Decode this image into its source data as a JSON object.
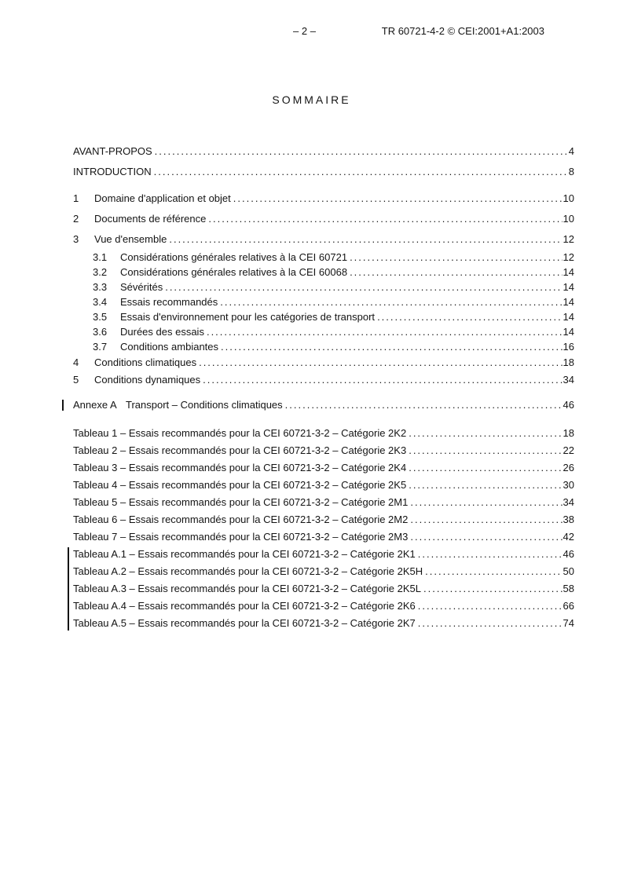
{
  "header": {
    "page_number": "– 2 –",
    "doc_ref": "TR 60721-4-2 © CEI:2001+A1:2003"
  },
  "title": "SOMMAIRE",
  "colors": {
    "text": "#141414",
    "background": "#ffffff",
    "revision_bar": "#141414"
  },
  "toc": {
    "front_matter": [
      {
        "label": "AVANT-PROPOS",
        "page": "4"
      },
      {
        "label": "INTRODUCTION",
        "page": "8"
      }
    ],
    "sections": [
      {
        "num": "1",
        "label": "Domaine d'application et objet",
        "page": "10"
      },
      {
        "num": "2",
        "label": "Documents de référence",
        "page": "10"
      },
      {
        "num": "3",
        "label": "Vue d'ensemble",
        "page": "12"
      },
      {
        "num": "3.1",
        "label": "Considérations générales relatives à la CEI 60721",
        "page": "12"
      },
      {
        "num": "3.2",
        "label": "Considérations générales relatives à la CEI 60068",
        "page": "14"
      },
      {
        "num": "3.3",
        "label": "Sévérités",
        "page": "14"
      },
      {
        "num": "3.4",
        "label": "Essais recommandés",
        "page": "14"
      },
      {
        "num": "3.5",
        "label": "Essais d'environnement pour les catégories de transport",
        "page": "14"
      },
      {
        "num": "3.6",
        "label": "Durées des essais",
        "page": "14"
      },
      {
        "num": "3.7",
        "label": "Conditions ambiantes",
        "page": "16"
      },
      {
        "num": "4",
        "label": "Conditions climatiques",
        "page": "18"
      },
      {
        "num": "5",
        "label": "Conditions dynamiques",
        "page": "34"
      }
    ],
    "annex": {
      "num": "Annexe A",
      "label": "Transport – Conditions climatiques",
      "page": "46",
      "revision_marked": true
    },
    "tables": [
      {
        "label": "Tableau 1 – Essais recommandés pour la CEI 60721-3-2 – Catégorie 2K2",
        "page": "18",
        "revision_marked": false
      },
      {
        "label": "Tableau 2 – Essais recommandés pour la CEI 60721-3-2 – Catégorie 2K3",
        "page": "22",
        "revision_marked": false
      },
      {
        "label": "Tableau 3 – Essais recommandés pour la CEI 60721-3-2 – Catégorie 2K4",
        "page": "26",
        "revision_marked": false
      },
      {
        "label": "Tableau 4 – Essais recommandés pour la CEI 60721-3-2 – Catégorie 2K5",
        "page": "30",
        "revision_marked": false
      },
      {
        "label": "Tableau 5 – Essais recommandés pour la CEI 60721-3-2 – Catégorie 2M1",
        "page": "34",
        "revision_marked": false
      },
      {
        "label": "Tableau 6 – Essais recommandés pour la CEI 60721-3-2 – Catégorie 2M2",
        "page": "38",
        "revision_marked": false
      },
      {
        "label": "Tableau 7 – Essais recommandés pour la CEI 60721-3-2 – Catégorie 2M3",
        "page": "42",
        "revision_marked": false
      },
      {
        "label": "Tableau A.1 – Essais recommandés pour la CEI 60721-3-2 – Catégorie 2K1",
        "page": "46",
        "revision_marked": true
      },
      {
        "label": "Tableau A.2 – Essais recommandés pour la CEI 60721-3-2 – Catégorie 2K5H",
        "page": "50",
        "revision_marked": true
      },
      {
        "label": "Tableau A.3 – Essais recommandés pour la CEI 60721-3-2 – Catégorie 2K5L",
        "page": "58",
        "revision_marked": true
      },
      {
        "label": "Tableau A.4 – Essais recommandés pour la CEI 60721-3-2 – Catégorie 2K6",
        "page": "66",
        "revision_marked": true
      },
      {
        "label": "Tableau A.5 – Essais recommandés pour la CEI 60721-3-2 – Catégorie 2K7",
        "page": "74",
        "revision_marked": true
      }
    ]
  }
}
